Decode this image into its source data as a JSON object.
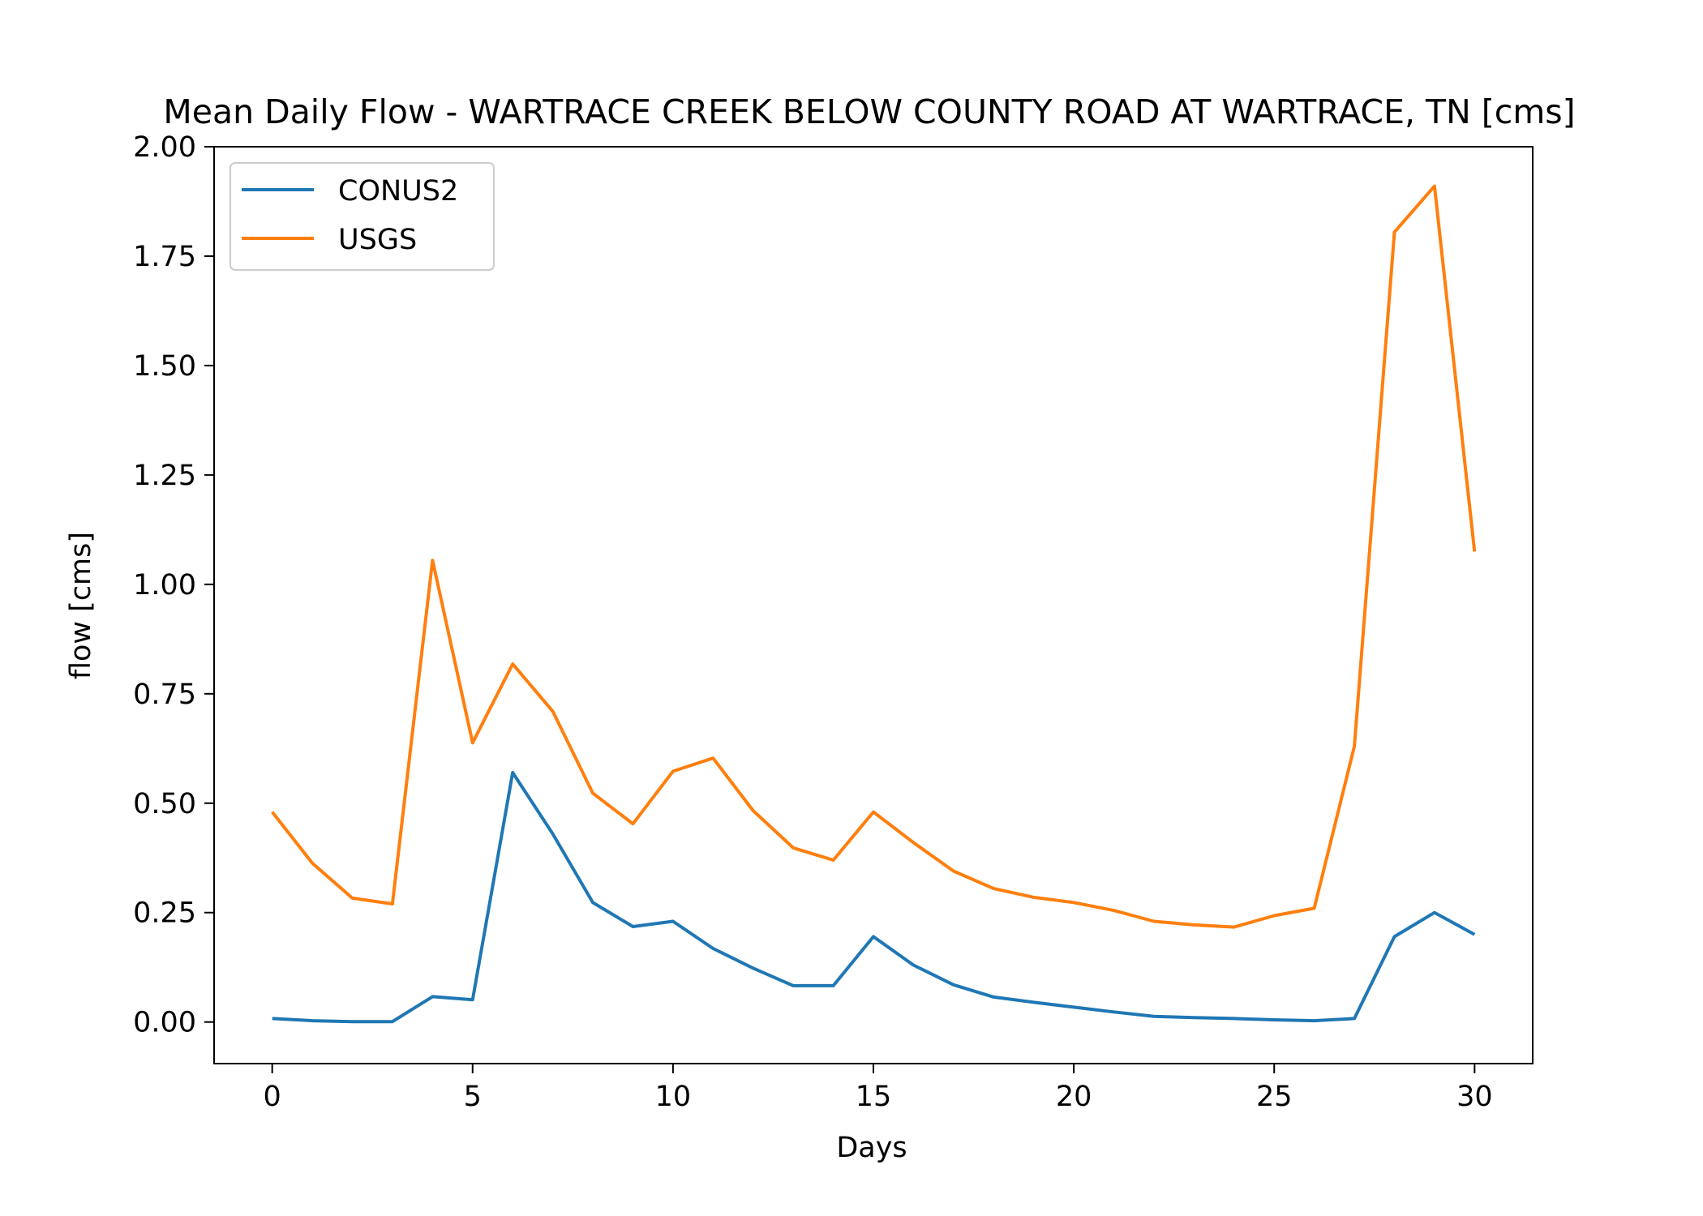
{
  "chart_data": {
    "type": "line",
    "title": "Mean Daily Flow - WARTRACE CREEK BELOW COUNTY ROAD AT WARTRACE, TN [cms]",
    "xlabel": "Days",
    "ylabel": "flow [cms]",
    "xlim": [
      -1.45,
      31.45
    ],
    "ylim": [
      -0.095,
      2.0
    ],
    "x_ticks": [
      0,
      5,
      10,
      15,
      20,
      25,
      30
    ],
    "y_ticks": [
      0.0,
      0.25,
      0.5,
      0.75,
      1.0,
      1.25,
      1.5,
      1.75,
      2.0
    ],
    "y_tick_labels": [
      "0.00",
      "0.25",
      "0.50",
      "0.75",
      "1.00",
      "1.25",
      "1.50",
      "1.75",
      "2.00"
    ],
    "grid": false,
    "legend_position": "upper-left",
    "x": [
      0,
      1,
      2,
      3,
      4,
      5,
      6,
      7,
      8,
      9,
      10,
      11,
      12,
      13,
      14,
      15,
      16,
      17,
      18,
      19,
      20,
      21,
      22,
      23,
      24,
      25,
      26,
      27,
      28,
      29,
      30
    ],
    "series": [
      {
        "name": "CONUS2",
        "color": "#1f77b4",
        "values": [
          0.008,
          0.003,
          0.001,
          0.001,
          0.058,
          0.051,
          0.57,
          0.43,
          0.273,
          0.218,
          0.23,
          0.168,
          0.123,
          0.083,
          0.083,
          0.195,
          0.13,
          0.085,
          0.057,
          0.045,
          0.034,
          0.023,
          0.013,
          0.01,
          0.008,
          0.005,
          0.003,
          0.008,
          0.195,
          0.25,
          0.2
        ]
      },
      {
        "name": "USGS",
        "color": "#ff7f0e",
        "values": [
          0.48,
          0.363,
          0.283,
          0.27,
          1.055,
          0.638,
          0.818,
          0.71,
          0.523,
          0.453,
          0.573,
          0.603,
          0.483,
          0.398,
          0.37,
          0.48,
          0.41,
          0.345,
          0.305,
          0.285,
          0.273,
          0.255,
          0.23,
          0.222,
          0.217,
          0.243,
          0.26,
          0.63,
          1.805,
          1.91,
          1.075
        ]
      }
    ]
  }
}
